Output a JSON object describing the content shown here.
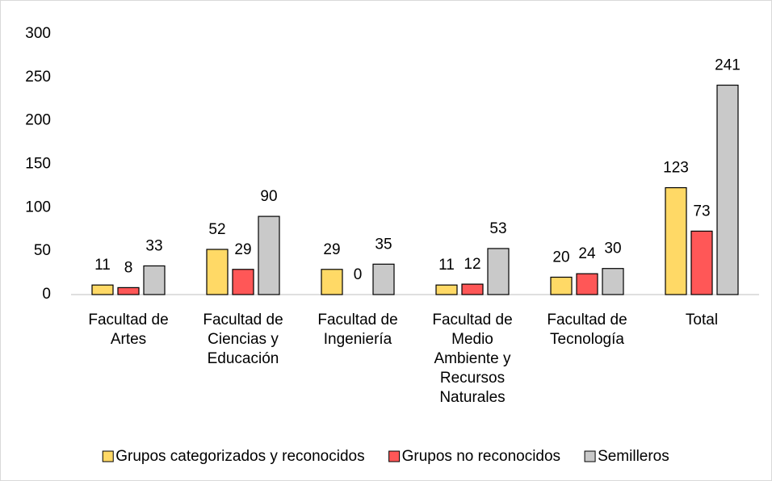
{
  "chart_data": {
    "type": "bar",
    "categories": [
      "Facultad de Artes",
      "Facultad de Ciencias y Educación",
      "Facultad de Ingeniería",
      "Facultad de Medio Ambiente y Recursos Naturales",
      "Facultad de Tecnología",
      "Total"
    ],
    "series": [
      {
        "name": "Grupos categorizados y reconocidos",
        "color": "#FFD966",
        "values": [
          11,
          52,
          29,
          11,
          20,
          123
        ]
      },
      {
        "name": "Grupos no reconocidos",
        "color": "#FF5757",
        "values": [
          8,
          29,
          0,
          12,
          24,
          73
        ]
      },
      {
        "name": "Semilleros",
        "color": "#C9C9C9",
        "values": [
          33,
          90,
          35,
          53,
          30,
          241
        ]
      }
    ],
    "ylim": [
      0,
      300
    ],
    "yticks": [
      0,
      50,
      100,
      150,
      200,
      250,
      300
    ],
    "grid": false,
    "legend": "bottom"
  }
}
